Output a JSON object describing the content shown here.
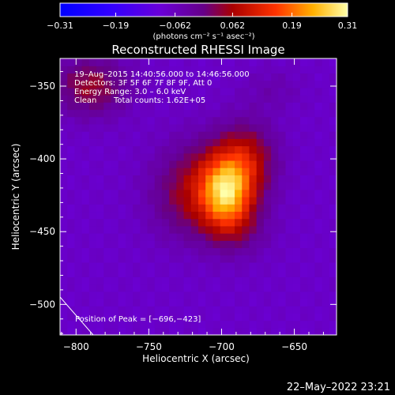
{
  "chart_data": {
    "type": "heatmap",
    "title": "Reconstructed RHESSI Image",
    "xlabel": "Heliocentric X (arcsec)",
    "ylabel": "Heliocentric Y (arcsec)",
    "xlim": [
      -811,
      -621
    ],
    "ylim": [
      -521,
      -331
    ],
    "x_ticks": [
      -800,
      -750,
      -700,
      -650
    ],
    "x_tick_labels": [
      "−800",
      "−750",
      "−700",
      "−650"
    ],
    "y_ticks": [
      -350,
      -400,
      -450,
      -500
    ],
    "y_tick_labels": [
      "−350",
      "−400",
      "−450",
      "−500"
    ],
    "colorbar": {
      "min": -0.31,
      "max": 0.31,
      "ticks": [
        -0.31,
        -0.19,
        -0.062,
        0.062,
        0.19,
        0.31
      ],
      "tick_labels": [
        "−0.31",
        "−0.19",
        "−0.062",
        "0.062",
        "0.19",
        "0.31"
      ],
      "unit_label": "(photons cm⁻² s⁻¹ asec⁻²)"
    },
    "info_lines": [
      "19–Aug–2015 14:40:56.000 to 14:46:56.000",
      "Detectors: 3F 5F 6F 7F 8F 9F, Att 0",
      "Energy Range: 3.0 – 6.0 keV",
      "Clean",
      "Total counts: 1.62E+05"
    ],
    "peak_label": "Position of Peak = [−696,−423]",
    "peak": [
      -696,
      -423
    ],
    "peak_value": 0.31,
    "components": [
      {
        "x": -697,
        "y": -423,
        "amp": 0.25,
        "sx": 12,
        "sy": 16
      },
      {
        "x": -710,
        "y": -412,
        "amp": 0.1,
        "sx": 22,
        "sy": 20
      },
      {
        "x": -683,
        "y": -400,
        "amp": 0.13,
        "sx": 14,
        "sy": 18
      },
      {
        "x": -692,
        "y": -447,
        "amp": 0.08,
        "sx": 16,
        "sy": 14
      },
      {
        "x": -727,
        "y": -432,
        "amp": 0.06,
        "sx": 16,
        "sy": 18
      },
      {
        "x": -790,
        "y": -350,
        "amp": 0.12,
        "sx": 18,
        "sy": 14
      },
      {
        "x": -665,
        "y": -352,
        "amp": 0.03,
        "sx": 14,
        "sy": 10
      }
    ],
    "background": -0.075,
    "timestamp": "22–May–2022 23:21"
  }
}
